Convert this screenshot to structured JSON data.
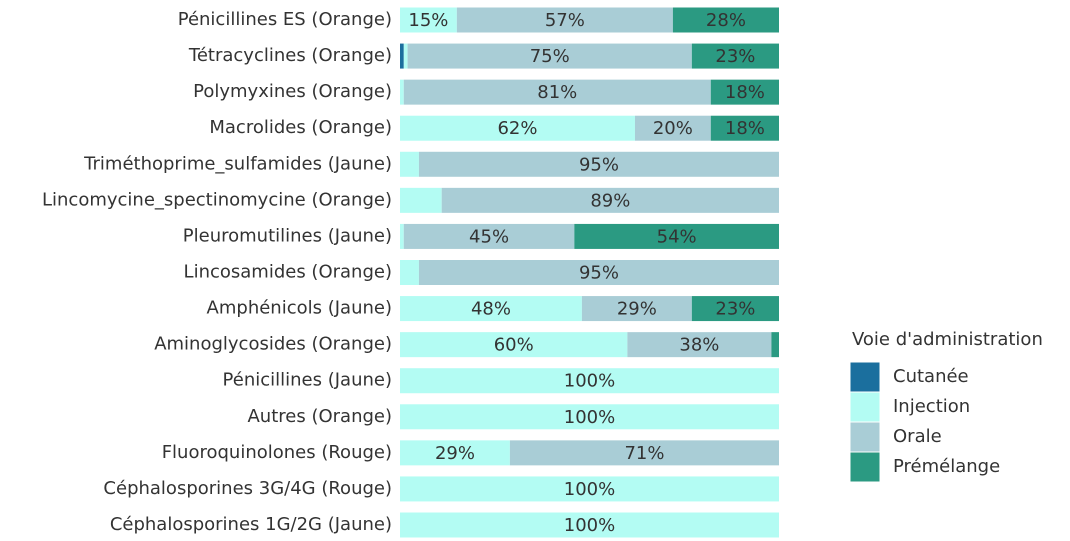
{
  "chart_data": {
    "type": "stacked-barh",
    "categories": [
      "Pénicillines ES (Orange)",
      "Tétracyclines (Orange)",
      "Polymyxines (Orange)",
      "Macrolides (Orange)",
      "Triméthoprime_sulfamides (Jaune)",
      "Lincomycine_spectinomycine (Orange)",
      "Pleuromutilines (Jaune)",
      "Lincosamides (Orange)",
      "Amphénicols (Jaune)",
      "Aminoglycosides (Orange)",
      "Pénicillines (Jaune)",
      "Autres (Orange)",
      "Fluoroquinolones (Rouge)",
      "Céphalosporines 3G/4G (Rouge)",
      "Céphalosporines 1G/2G (Jaune)"
    ],
    "xlim": [
      0,
      100
    ],
    "legend_title": "Voie d'administration",
    "legend": "right",
    "series": [
      {
        "name": "Cutanée",
        "color": "#1b6f9e",
        "values": [
          0,
          1,
          0,
          0,
          0,
          0,
          0,
          0,
          0,
          0,
          0,
          0,
          0,
          0,
          0
        ],
        "value_labels": [
          null,
          null,
          null,
          null,
          null,
          null,
          null,
          null,
          null,
          null,
          null,
          null,
          null,
          null,
          null
        ]
      },
      {
        "name": "Injection",
        "color": "#b3fcf3",
        "values": [
          15,
          1,
          1,
          62,
          5,
          11,
          1,
          5,
          48,
          60,
          100,
          100,
          29,
          100,
          100
        ],
        "value_labels": [
          "15%",
          null,
          null,
          "62%",
          null,
          null,
          null,
          null,
          "48%",
          "60%",
          "100%",
          "100%",
          "29%",
          "100%",
          "100%"
        ]
      },
      {
        "name": "Orale",
        "color": "#a9cdd6",
        "values": [
          57,
          75,
          81,
          20,
          95,
          89,
          45,
          95,
          29,
          38,
          0,
          0,
          71,
          0,
          0
        ],
        "value_labels": [
          "57%",
          "75%",
          "81%",
          "20%",
          "95%",
          "89%",
          "45%",
          "95%",
          "29%",
          "38%",
          null,
          null,
          "71%",
          null,
          null
        ]
      },
      {
        "name": "Prémélange",
        "color": "#2b9a82",
        "values": [
          28,
          23,
          18,
          18,
          0,
          0,
          54,
          0,
          23,
          2,
          0,
          0,
          0,
          0,
          0
        ],
        "value_labels": [
          "28%",
          "23%",
          "18%",
          "18%",
          null,
          null,
          "54%",
          null,
          "23%",
          null,
          null,
          null,
          null,
          null,
          null
        ]
      }
    ]
  }
}
